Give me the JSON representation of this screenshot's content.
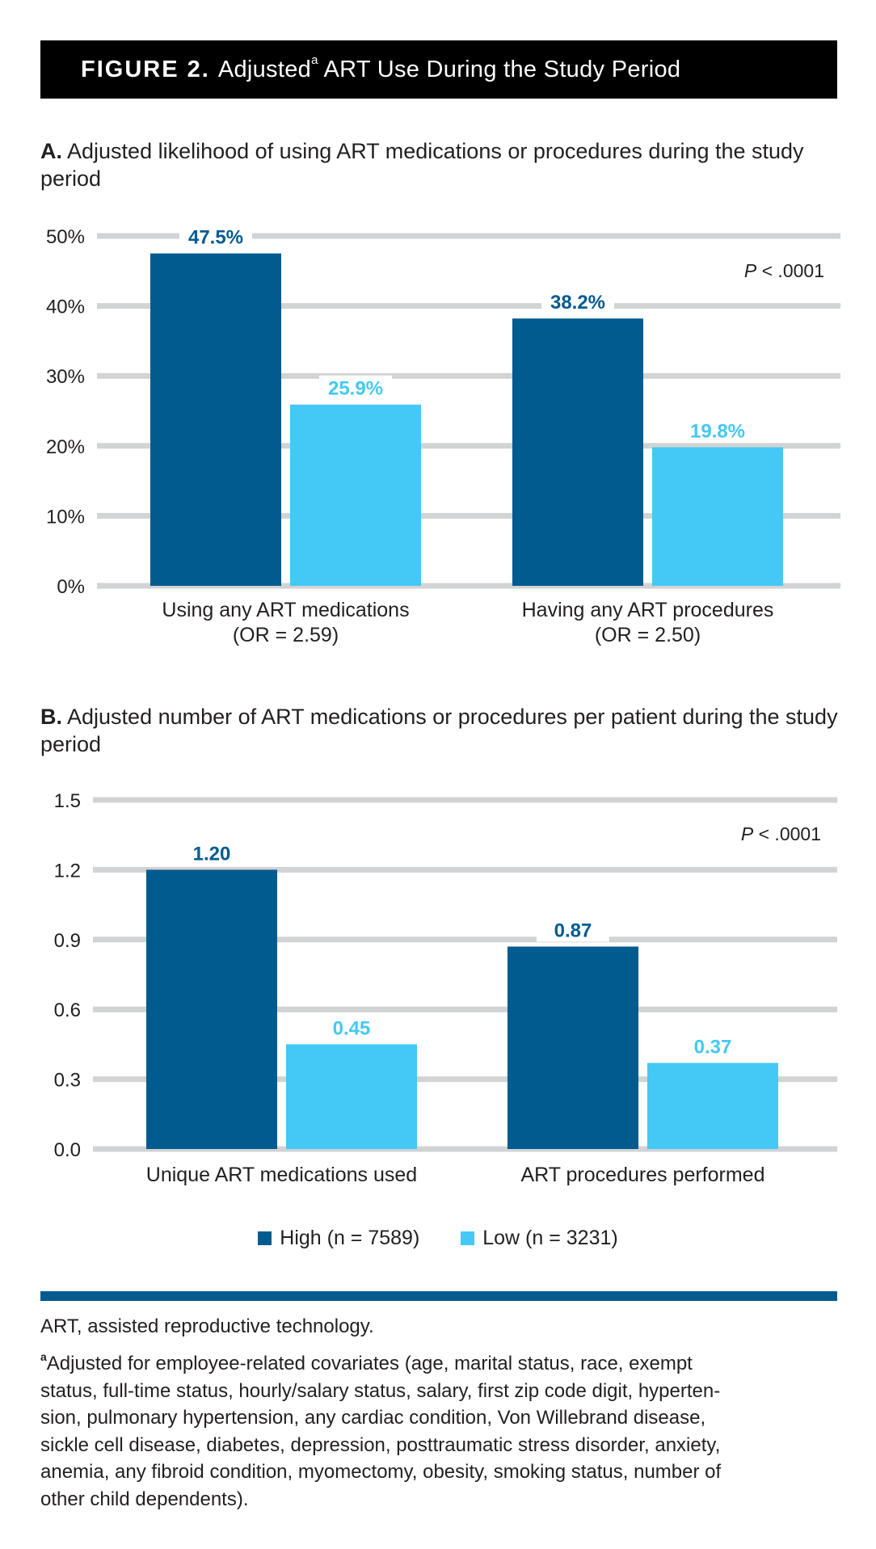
{
  "figure": {
    "label": "FIGURE 2.",
    "title_pre": "Adjusted",
    "title_sup": "a",
    "title_post": " ART Use During the Study Period"
  },
  "legend": [
    {
      "label": "High (n = 7589)",
      "color": "#005b8f"
    },
    {
      "label": "Low (n = 3231)",
      "color": "#44c8f5"
    }
  ],
  "chart_data": [
    {
      "type": "bar",
      "panel_label": "A.",
      "title": "Adjusted likelihood of using ART medications or procedures during the study period",
      "categories": [
        [
          "Using any ART medications",
          "(OR = 2.59)"
        ],
        [
          "Having any ART procedures",
          "(OR = 2.50)"
        ]
      ],
      "series": [
        {
          "name": "High (n = 7589)",
          "values": [
            47.5,
            38.2
          ],
          "labels": [
            "47.5%",
            "38.2%"
          ],
          "color": "#005b8f"
        },
        {
          "name": "Low (n = 3231)",
          "values": [
            25.9,
            19.8
          ],
          "labels": [
            "25.9%",
            "19.8%"
          ],
          "color": "#44c8f5"
        }
      ],
      "ylim": [
        0,
        50
      ],
      "yticks": [
        0,
        10,
        20,
        30,
        40,
        50
      ],
      "ytick_labels": [
        "0%",
        "10%",
        "20%",
        "30%",
        "40%",
        "50%"
      ],
      "annotation": {
        "p_italic": "P",
        "p_rest": " < .0001"
      },
      "grid": true
    },
    {
      "type": "bar",
      "panel_label": "B.",
      "title": "Adjusted number of ART medications or procedures per patient during the study period",
      "categories": [
        [
          "Unique ART medications used"
        ],
        [
          "ART procedures performed"
        ]
      ],
      "series": [
        {
          "name": "High (n = 7589)",
          "values": [
            1.2,
            0.87
          ],
          "labels": [
            "1.20",
            "0.87"
          ],
          "color": "#005b8f"
        },
        {
          "name": "Low (n = 3231)",
          "values": [
            0.45,
            0.37
          ],
          "labels": [
            "0.45",
            "0.37"
          ],
          "color": "#44c8f5"
        }
      ],
      "ylim": [
        0,
        1.5
      ],
      "yticks": [
        0,
        0.3,
        0.6,
        0.9,
        1.2,
        1.5
      ],
      "ytick_labels": [
        "0.0",
        "0.3",
        "0.6",
        "0.9",
        "1.2",
        "1.5"
      ],
      "annotation": {
        "p_italic": "P",
        "p_rest": " < .0001"
      },
      "grid": true
    }
  ],
  "abbreviation": "ART, assisted reproductive technology.",
  "footnote": {
    "marker": "a",
    "lines": [
      "Adjusted for employee-related covariates (age, marital status, race, exempt",
      "status, full-time status, hourly/salary status, salary, first zip code digit, hyperten-",
      "sion, pulmonary hypertension, any cardiac condition, Von Willebrand disease,",
      "sickle cell disease, diabetes, depression, posttraumatic stress disorder, anxiety,",
      "anemia, any fibroid condition, myomectomy, obesity, smoking status, number of",
      "other child dependents)."
    ]
  },
  "colors": {
    "high": "#005b8f",
    "low": "#44c8f5",
    "grid": "#d1d3d4",
    "banner": "#000000"
  }
}
